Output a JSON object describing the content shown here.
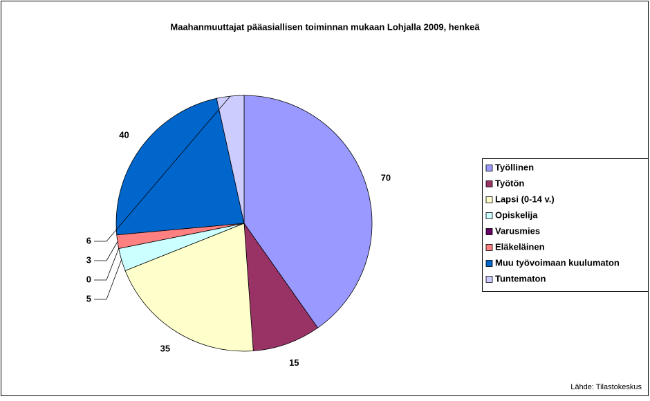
{
  "chart_data": {
    "type": "pie",
    "title": "Maahanmuuttajat pääasiallisen toiminnan mukaan Lohjalla 2009, henkeä",
    "categories": [
      "Työllinen",
      "Työtön",
      "Lapsi  (0-14 v.)",
      "Opiskelija",
      "Varusmies",
      "Eläkeläinen",
      "Muu työvoimaan kuulumaton",
      "Tuntematon"
    ],
    "values": [
      70,
      15,
      35,
      5,
      0,
      3,
      40,
      6
    ],
    "colors": [
      "#9999ff",
      "#993366",
      "#ffffcc",
      "#ccffff",
      "#660066",
      "#ff8080",
      "#0066cc",
      "#ccccff"
    ],
    "legend": "right",
    "source": "Lähde: Tilastokeskus"
  }
}
